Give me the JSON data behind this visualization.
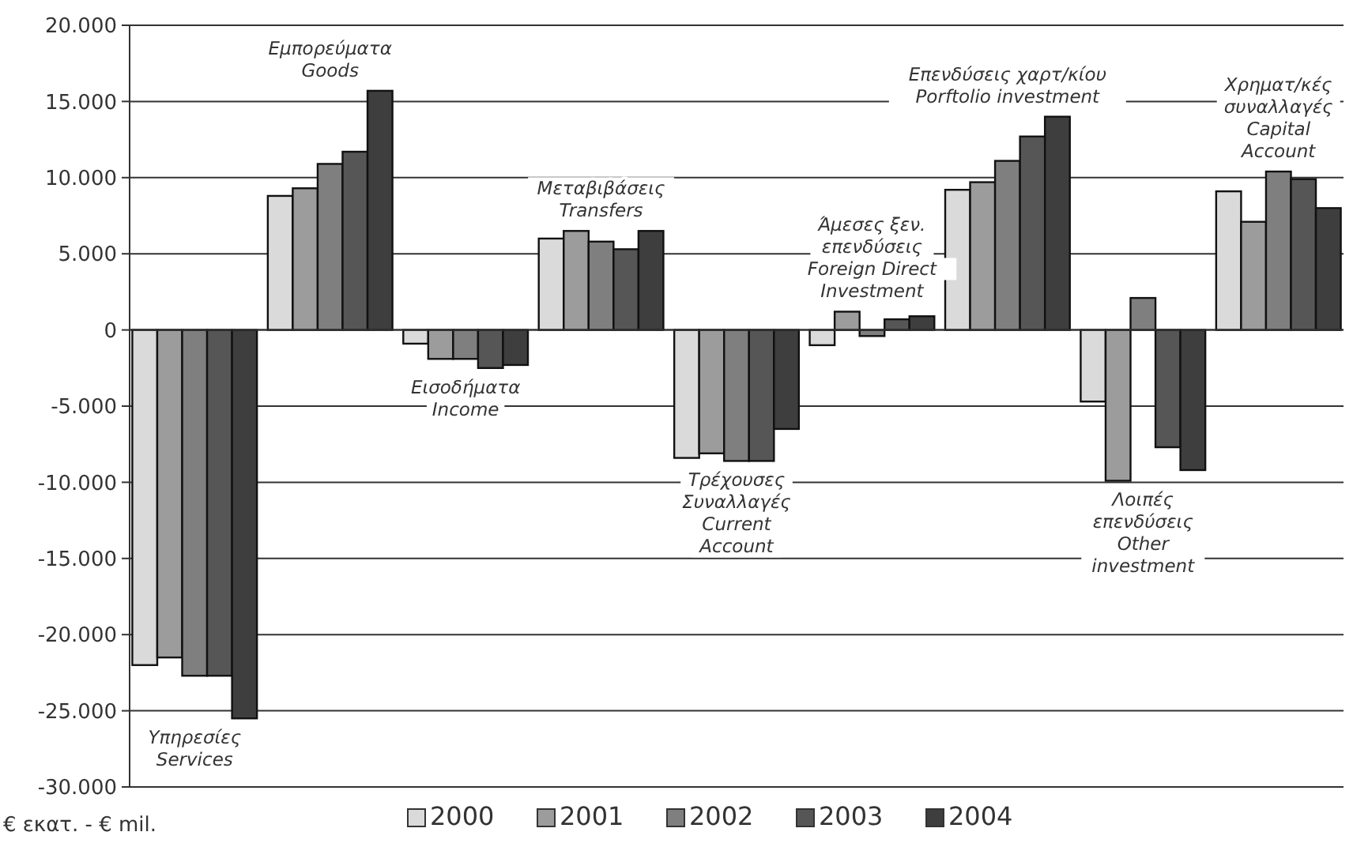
{
  "chart_data": {
    "type": "bar",
    "ylabel": "€ εκατ. - € mil.",
    "categories": [
      null,
      null,
      null,
      null,
      null,
      null,
      null,
      null,
      null
    ],
    "series": [
      {
        "name": "2000",
        "color": "#dadada",
        "values": [
          -22000,
          8800,
          -900,
          6000,
          -8400,
          -1000,
          9200,
          -4700,
          9100
        ]
      },
      {
        "name": "2001",
        "color": "#9c9c9c",
        "values": [
          -21500,
          9300,
          -1900,
          6500,
          -8100,
          1200,
          9700,
          -9900,
          7100
        ]
      },
      {
        "name": "2002",
        "color": "#7f7f7f",
        "values": [
          -22700,
          10900,
          -1900,
          5800,
          -8600,
          -400,
          11100,
          2100,
          10400
        ]
      },
      {
        "name": "2003",
        "color": "#565656",
        "values": [
          -22700,
          11700,
          -2500,
          5300,
          -8600,
          700,
          12700,
          -7700,
          9900
        ]
      },
      {
        "name": "2004",
        "color": "#3e3e3e",
        "values": [
          -25500,
          15700,
          -2300,
          6500,
          -6500,
          900,
          14000,
          -9200,
          8000
        ]
      }
    ],
    "ylim": [
      -30000,
      20000
    ],
    "yticks": [
      {
        "value": -30000,
        "label": "-30.000"
      },
      {
        "value": -25000,
        "label": "-25.000"
      },
      {
        "value": -20000,
        "label": "-20.000"
      },
      {
        "value": -15000,
        "label": "-15.000"
      },
      {
        "value": -10000,
        "label": "-10.000"
      },
      {
        "value": -5000,
        "label": "-5.000"
      },
      {
        "value": 0,
        "label": "0"
      },
      {
        "value": 5000,
        "label": "5.000"
      },
      {
        "value": 10000,
        "label": "10.000"
      },
      {
        "value": 15000,
        "label": "15.000"
      },
      {
        "value": 20000,
        "label": "20.000"
      }
    ],
    "grid": "y",
    "legend": "bottom",
    "annotations": [
      "Υπηρεσίες\nServices",
      "Εμπορεύματα\nGoods",
      "Εισοδήματα\nIncome",
      "Μεταβιβάσεις\nTransfers",
      "Τρέχουσες\nΣυναλλαγές\nCurrent\nAccount",
      "Άμεσες ξεν.\nεπενδύσεις\nForeign Direct\nInvestment",
      "Επενδύσεις χαρτ/κίου\nPorftolio investment",
      "Λοιπές\nεπενδύσεις\nOther\ninvestment",
      "Χρηματ/κές\nσυναλλαγές\nCapital\nAccount"
    ]
  }
}
